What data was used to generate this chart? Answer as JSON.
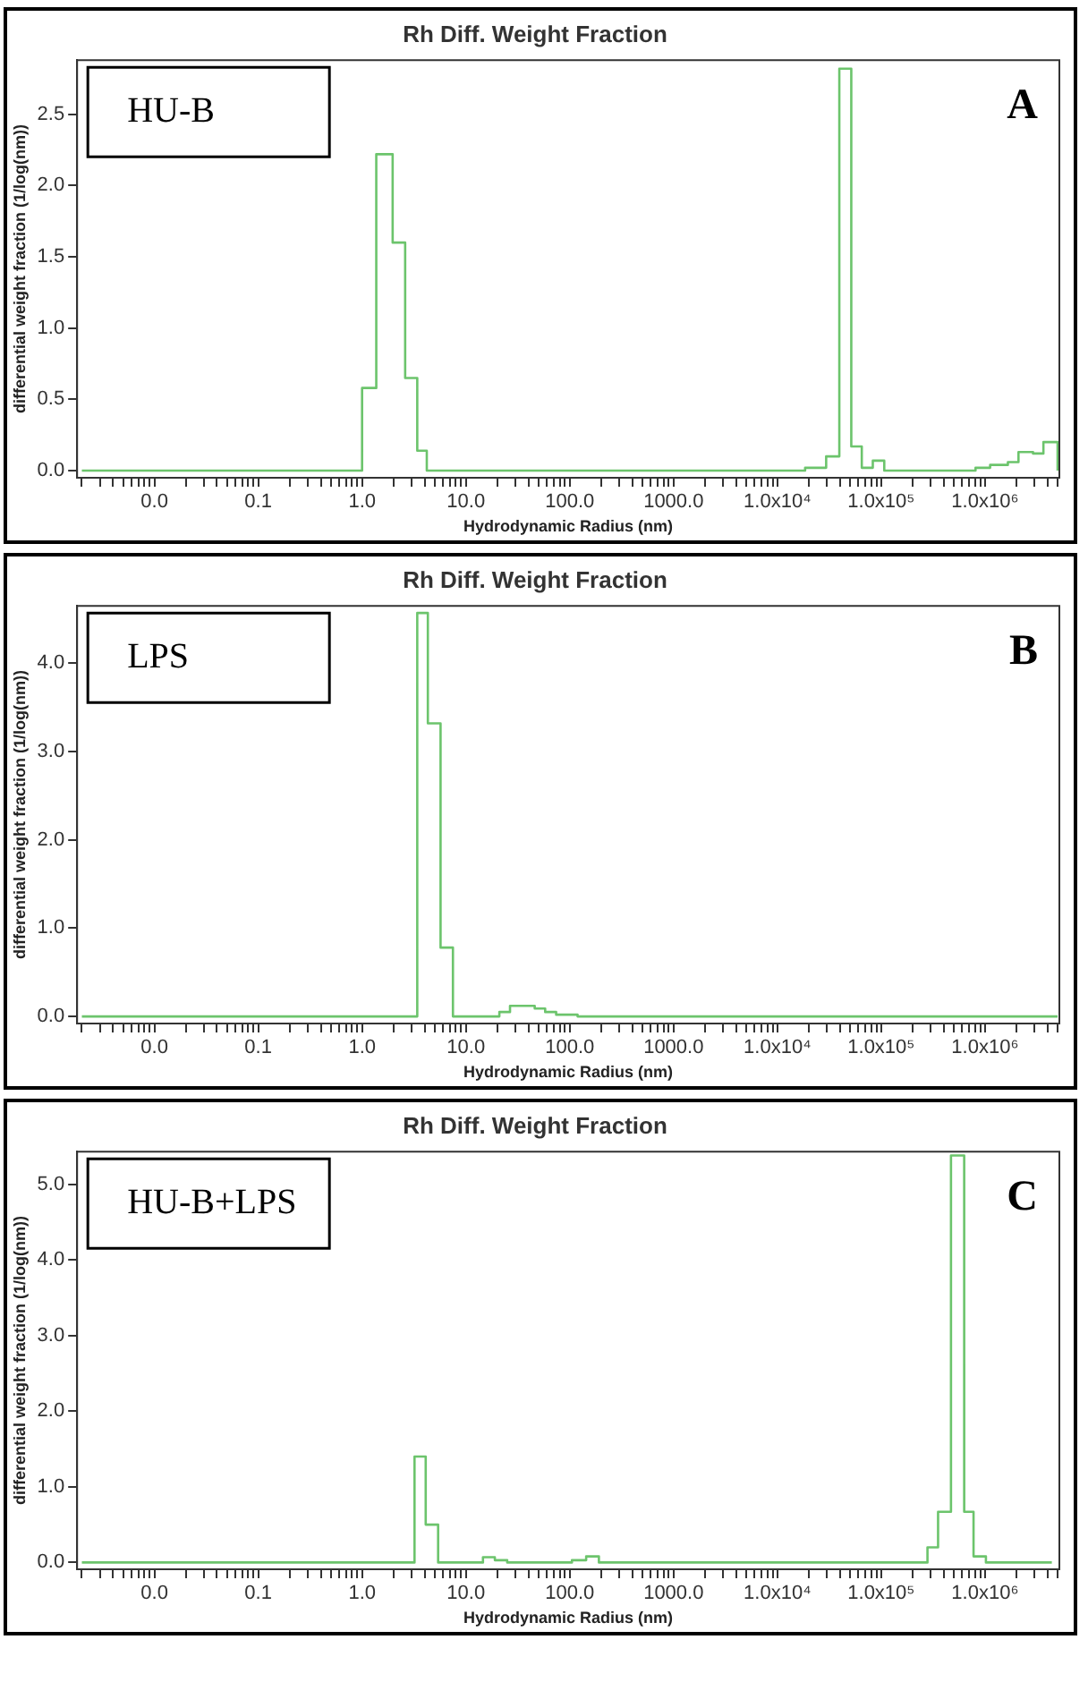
{
  "chart_data": [
    {
      "type": "step",
      "title": "Rh Diff. Weight Fraction",
      "xlabel": "Hydrodynamic Radius (nm)",
      "ylabel": "differential weight fraction (1/log(nm))",
      "log": "x",
      "color": "#6cc46c",
      "annotations": [
        "HU-B",
        "A"
      ],
      "x": [
        0.002,
        1.0,
        1.37,
        1.97,
        2.6,
        3.4,
        4.2,
        18500,
        29500,
        39500,
        51500,
        65000,
        83000,
        107000,
        810000,
        1120000,
        1660000,
        2100000,
        2900000,
        3650000,
        5000000
      ],
      "values": [
        0,
        0.58,
        2.22,
        1.6,
        0.65,
        0.14,
        0,
        0.02,
        0.1,
        2.82,
        0.17,
        0.02,
        0.07,
        0,
        0.02,
        0.04,
        0.06,
        0.13,
        0.12,
        0.2,
        0
      ],
      "xlim": [
        0.0018,
        5200000
      ],
      "ylim": [
        -0.05,
        2.88
      ],
      "yticks": [
        {
          "value": 0,
          "label": "0.0"
        },
        {
          "value": 0.5,
          "label": "0.5"
        },
        {
          "value": 1,
          "label": "1.0"
        },
        {
          "value": 1.5,
          "label": "1.5"
        },
        {
          "value": 2,
          "label": "2.0"
        },
        {
          "value": 2.5,
          "label": "2.5"
        }
      ],
      "xticks": [
        {
          "value": 0.002,
          "label": null
        },
        {
          "value": 0.003,
          "label": null
        },
        {
          "value": 0.004,
          "label": null
        },
        {
          "value": 0.005,
          "label": null
        },
        {
          "value": 0.006,
          "label": null
        },
        {
          "value": 0.007,
          "label": null
        },
        {
          "value": 0.008,
          "label": null
        },
        {
          "value": 0.009,
          "label": null
        },
        {
          "value": 0.01,
          "label": "0.0"
        },
        {
          "value": 0.02,
          "label": null
        },
        {
          "value": 0.03,
          "label": null
        },
        {
          "value": 0.04,
          "label": null
        },
        {
          "value": 0.05,
          "label": null
        },
        {
          "value": 0.06,
          "label": null
        },
        {
          "value": 0.07,
          "label": null
        },
        {
          "value": 0.08,
          "label": null
        },
        {
          "value": 0.09,
          "label": null
        },
        {
          "value": 0.1,
          "label": "0.1"
        },
        {
          "value": 0.2,
          "label": null
        },
        {
          "value": 0.3,
          "label": null
        },
        {
          "value": 0.4,
          "label": null
        },
        {
          "value": 0.5,
          "label": null
        },
        {
          "value": 0.6,
          "label": null
        },
        {
          "value": 0.7,
          "label": null
        },
        {
          "value": 0.8,
          "label": null
        },
        {
          "value": 0.9,
          "label": null
        },
        {
          "value": 1,
          "label": "1.0"
        },
        {
          "value": 2,
          "label": null
        },
        {
          "value": 3,
          "label": null
        },
        {
          "value": 4,
          "label": null
        },
        {
          "value": 5,
          "label": null
        },
        {
          "value": 6,
          "label": null
        },
        {
          "value": 7,
          "label": null
        },
        {
          "value": 8,
          "label": null
        },
        {
          "value": 9,
          "label": null
        },
        {
          "value": 10,
          "label": "10.0"
        },
        {
          "value": 20,
          "label": null
        },
        {
          "value": 30,
          "label": null
        },
        {
          "value": 40,
          "label": null
        },
        {
          "value": 50,
          "label": null
        },
        {
          "value": 60,
          "label": null
        },
        {
          "value": 70,
          "label": null
        },
        {
          "value": 80,
          "label": null
        },
        {
          "value": 90,
          "label": null
        },
        {
          "value": 100,
          "label": "100.0"
        },
        {
          "value": 200,
          "label": null
        },
        {
          "value": 300,
          "label": null
        },
        {
          "value": 400,
          "label": null
        },
        {
          "value": 500,
          "label": null
        },
        {
          "value": 600,
          "label": null
        },
        {
          "value": 700,
          "label": null
        },
        {
          "value": 800,
          "label": null
        },
        {
          "value": 900,
          "label": null
        },
        {
          "value": 1000,
          "label": "1000.0"
        },
        {
          "value": 2000,
          "label": null
        },
        {
          "value": 3000,
          "label": null
        },
        {
          "value": 4000,
          "label": null
        },
        {
          "value": 5000,
          "label": null
        },
        {
          "value": 6000,
          "label": null
        },
        {
          "value": 7000,
          "label": null
        },
        {
          "value": 8000,
          "label": null
        },
        {
          "value": 9000,
          "label": null
        },
        {
          "value": 10000,
          "label": "1.0x10⁴"
        },
        {
          "value": 20000,
          "label": null
        },
        {
          "value": 30000,
          "label": null
        },
        {
          "value": 40000,
          "label": null
        },
        {
          "value": 50000,
          "label": null
        },
        {
          "value": 60000,
          "label": null
        },
        {
          "value": 70000,
          "label": null
        },
        {
          "value": 80000,
          "label": null
        },
        {
          "value": 90000,
          "label": null
        },
        {
          "value": 100000,
          "label": "1.0x10⁵"
        },
        {
          "value": 200000,
          "label": null
        },
        {
          "value": 300000,
          "label": null
        },
        {
          "value": 400000,
          "label": null
        },
        {
          "value": 500000,
          "label": null
        },
        {
          "value": 600000,
          "label": null
        },
        {
          "value": 700000,
          "label": null
        },
        {
          "value": 800000,
          "label": null
        },
        {
          "value": 900000,
          "label": null
        },
        {
          "value": 1000000,
          "label": "1.0x10⁶"
        },
        {
          "value": 2000000,
          "label": null
        },
        {
          "value": 3000000,
          "label": null
        },
        {
          "value": 4000000,
          "label": null
        },
        {
          "value": 5000000,
          "label": null
        }
      ]
    },
    {
      "type": "step",
      "title": "Rh Diff. Weight Fraction",
      "xlabel": "Hydrodynamic Radius (nm)",
      "ylabel": "differential weight fraction (1/log(nm))",
      "log": "x",
      "color": "#6cc46c",
      "annotations": [
        "LPS",
        "B"
      ],
      "x": [
        0.002,
        3.4,
        4.3,
        5.7,
        7.5,
        21,
        26.6,
        46,
        58,
        74,
        119,
        5000000
      ],
      "values": [
        0,
        4.57,
        3.32,
        0.78,
        0,
        0.05,
        0.12,
        0.09,
        0.05,
        0.02,
        0,
        0
      ],
      "xlim": [
        0.0018,
        5200000
      ],
      "ylim": [
        -0.08,
        4.65
      ],
      "yticks": [
        {
          "value": 0,
          "label": "0.0"
        },
        {
          "value": 1,
          "label": "1.0"
        },
        {
          "value": 2,
          "label": "2.0"
        },
        {
          "value": 3,
          "label": "3.0"
        },
        {
          "value": 4,
          "label": "4.0"
        }
      ],
      "xticks": [
        {
          "value": 0.002,
          "label": null
        },
        {
          "value": 0.003,
          "label": null
        },
        {
          "value": 0.004,
          "label": null
        },
        {
          "value": 0.005,
          "label": null
        },
        {
          "value": 0.006,
          "label": null
        },
        {
          "value": 0.007,
          "label": null
        },
        {
          "value": 0.008,
          "label": null
        },
        {
          "value": 0.009,
          "label": null
        },
        {
          "value": 0.01,
          "label": "0.0"
        },
        {
          "value": 0.02,
          "label": null
        },
        {
          "value": 0.03,
          "label": null
        },
        {
          "value": 0.04,
          "label": null
        },
        {
          "value": 0.05,
          "label": null
        },
        {
          "value": 0.06,
          "label": null
        },
        {
          "value": 0.07,
          "label": null
        },
        {
          "value": 0.08,
          "label": null
        },
        {
          "value": 0.09,
          "label": null
        },
        {
          "value": 0.1,
          "label": "0.1"
        },
        {
          "value": 0.2,
          "label": null
        },
        {
          "value": 0.3,
          "label": null
        },
        {
          "value": 0.4,
          "label": null
        },
        {
          "value": 0.5,
          "label": null
        },
        {
          "value": 0.6,
          "label": null
        },
        {
          "value": 0.7,
          "label": null
        },
        {
          "value": 0.8,
          "label": null
        },
        {
          "value": 0.9,
          "label": null
        },
        {
          "value": 1,
          "label": "1.0"
        },
        {
          "value": 2,
          "label": null
        },
        {
          "value": 3,
          "label": null
        },
        {
          "value": 4,
          "label": null
        },
        {
          "value": 5,
          "label": null
        },
        {
          "value": 6,
          "label": null
        },
        {
          "value": 7,
          "label": null
        },
        {
          "value": 8,
          "label": null
        },
        {
          "value": 9,
          "label": null
        },
        {
          "value": 10,
          "label": "10.0"
        },
        {
          "value": 20,
          "label": null
        },
        {
          "value": 30,
          "label": null
        },
        {
          "value": 40,
          "label": null
        },
        {
          "value": 50,
          "label": null
        },
        {
          "value": 60,
          "label": null
        },
        {
          "value": 70,
          "label": null
        },
        {
          "value": 80,
          "label": null
        },
        {
          "value": 90,
          "label": null
        },
        {
          "value": 100,
          "label": "100.0"
        },
        {
          "value": 200,
          "label": null
        },
        {
          "value": 300,
          "label": null
        },
        {
          "value": 400,
          "label": null
        },
        {
          "value": 500,
          "label": null
        },
        {
          "value": 600,
          "label": null
        },
        {
          "value": 700,
          "label": null
        },
        {
          "value": 800,
          "label": null
        },
        {
          "value": 900,
          "label": null
        },
        {
          "value": 1000,
          "label": "1000.0"
        },
        {
          "value": 2000,
          "label": null
        },
        {
          "value": 3000,
          "label": null
        },
        {
          "value": 4000,
          "label": null
        },
        {
          "value": 5000,
          "label": null
        },
        {
          "value": 6000,
          "label": null
        },
        {
          "value": 7000,
          "label": null
        },
        {
          "value": 8000,
          "label": null
        },
        {
          "value": 9000,
          "label": null
        },
        {
          "value": 10000,
          "label": "1.0x10⁴"
        },
        {
          "value": 20000,
          "label": null
        },
        {
          "value": 30000,
          "label": null
        },
        {
          "value": 40000,
          "label": null
        },
        {
          "value": 50000,
          "label": null
        },
        {
          "value": 60000,
          "label": null
        },
        {
          "value": 70000,
          "label": null
        },
        {
          "value": 80000,
          "label": null
        },
        {
          "value": 90000,
          "label": null
        },
        {
          "value": 100000,
          "label": "1.0x10⁵"
        },
        {
          "value": 200000,
          "label": null
        },
        {
          "value": 300000,
          "label": null
        },
        {
          "value": 400000,
          "label": null
        },
        {
          "value": 500000,
          "label": null
        },
        {
          "value": 600000,
          "label": null
        },
        {
          "value": 700000,
          "label": null
        },
        {
          "value": 800000,
          "label": null
        },
        {
          "value": 900000,
          "label": null
        },
        {
          "value": 1000000,
          "label": "1.0x10⁶"
        },
        {
          "value": 2000000,
          "label": null
        },
        {
          "value": 3000000,
          "label": null
        },
        {
          "value": 4000000,
          "label": null
        },
        {
          "value": 5000000,
          "label": null
        }
      ]
    },
    {
      "type": "step",
      "title": "Rh Diff. Weight Fraction",
      "xlabel": "Hydrodynamic Radius (nm)",
      "ylabel": "differential weight fraction (1/log(nm))",
      "log": "x",
      "color": "#6cc46c",
      "annotations": [
        "HU-B+LPS",
        "C"
      ],
      "x": [
        0.002,
        3.2,
        4.1,
        5.4,
        14.6,
        19,
        25,
        105,
        144,
        191,
        279000,
        353000,
        470000,
        630000,
        775000,
        1020000,
        4400000
      ],
      "values": [
        0,
        1.4,
        0.5,
        0,
        0.07,
        0.03,
        0,
        0.03,
        0.08,
        0,
        0.2,
        0.67,
        5.38,
        0.67,
        0.08,
        0,
        0
      ],
      "xlim": [
        0.0018,
        5200000
      ],
      "ylim": [
        -0.09,
        5.43
      ],
      "yticks": [
        {
          "value": 0,
          "label": "0.0"
        },
        {
          "value": 1,
          "label": "1.0"
        },
        {
          "value": 2,
          "label": "2.0"
        },
        {
          "value": 3,
          "label": "3.0"
        },
        {
          "value": 4,
          "label": "4.0"
        },
        {
          "value": 5,
          "label": "5.0"
        }
      ],
      "xticks": [
        {
          "value": 0.002,
          "label": null
        },
        {
          "value": 0.003,
          "label": null
        },
        {
          "value": 0.004,
          "label": null
        },
        {
          "value": 0.005,
          "label": null
        },
        {
          "value": 0.006,
          "label": null
        },
        {
          "value": 0.007,
          "label": null
        },
        {
          "value": 0.008,
          "label": null
        },
        {
          "value": 0.009,
          "label": null
        },
        {
          "value": 0.01,
          "label": "0.0"
        },
        {
          "value": 0.02,
          "label": null
        },
        {
          "value": 0.03,
          "label": null
        },
        {
          "value": 0.04,
          "label": null
        },
        {
          "value": 0.05,
          "label": null
        },
        {
          "value": 0.06,
          "label": null
        },
        {
          "value": 0.07,
          "label": null
        },
        {
          "value": 0.08,
          "label": null
        },
        {
          "value": 0.09,
          "label": null
        },
        {
          "value": 0.1,
          "label": "0.1"
        },
        {
          "value": 0.2,
          "label": null
        },
        {
          "value": 0.3,
          "label": null
        },
        {
          "value": 0.4,
          "label": null
        },
        {
          "value": 0.5,
          "label": null
        },
        {
          "value": 0.6,
          "label": null
        },
        {
          "value": 0.7,
          "label": null
        },
        {
          "value": 0.8,
          "label": null
        },
        {
          "value": 0.9,
          "label": null
        },
        {
          "value": 1,
          "label": "1.0"
        },
        {
          "value": 2,
          "label": null
        },
        {
          "value": 3,
          "label": null
        },
        {
          "value": 4,
          "label": null
        },
        {
          "value": 5,
          "label": null
        },
        {
          "value": 6,
          "label": null
        },
        {
          "value": 7,
          "label": null
        },
        {
          "value": 8,
          "label": null
        },
        {
          "value": 9,
          "label": null
        },
        {
          "value": 10,
          "label": "10.0"
        },
        {
          "value": 20,
          "label": null
        },
        {
          "value": 30,
          "label": null
        },
        {
          "value": 40,
          "label": null
        },
        {
          "value": 50,
          "label": null
        },
        {
          "value": 60,
          "label": null
        },
        {
          "value": 70,
          "label": null
        },
        {
          "value": 80,
          "label": null
        },
        {
          "value": 90,
          "label": null
        },
        {
          "value": 100,
          "label": "100.0"
        },
        {
          "value": 200,
          "label": null
        },
        {
          "value": 300,
          "label": null
        },
        {
          "value": 400,
          "label": null
        },
        {
          "value": 500,
          "label": null
        },
        {
          "value": 600,
          "label": null
        },
        {
          "value": 700,
          "label": null
        },
        {
          "value": 800,
          "label": null
        },
        {
          "value": 900,
          "label": null
        },
        {
          "value": 1000,
          "label": "1000.0"
        },
        {
          "value": 2000,
          "label": null
        },
        {
          "value": 3000,
          "label": null
        },
        {
          "value": 4000,
          "label": null
        },
        {
          "value": 5000,
          "label": null
        },
        {
          "value": 6000,
          "label": null
        },
        {
          "value": 7000,
          "label": null
        },
        {
          "value": 8000,
          "label": null
        },
        {
          "value": 9000,
          "label": null
        },
        {
          "value": 10000,
          "label": "1.0x10⁴"
        },
        {
          "value": 20000,
          "label": null
        },
        {
          "value": 30000,
          "label": null
        },
        {
          "value": 40000,
          "label": null
        },
        {
          "value": 50000,
          "label": null
        },
        {
          "value": 60000,
          "label": null
        },
        {
          "value": 70000,
          "label": null
        },
        {
          "value": 80000,
          "label": null
        },
        {
          "value": 90000,
          "label": null
        },
        {
          "value": 100000,
          "label": "1.0x10⁵"
        },
        {
          "value": 200000,
          "label": null
        },
        {
          "value": 300000,
          "label": null
        },
        {
          "value": 400000,
          "label": null
        },
        {
          "value": 500000,
          "label": null
        },
        {
          "value": 600000,
          "label": null
        },
        {
          "value": 700000,
          "label": null
        },
        {
          "value": 800000,
          "label": null
        },
        {
          "value": 900000,
          "label": null
        },
        {
          "value": 1000000,
          "label": "1.0x10⁶"
        },
        {
          "value": 2000000,
          "label": null
        },
        {
          "value": 3000000,
          "label": null
        },
        {
          "value": 4000000,
          "label": null
        },
        {
          "value": 5000000,
          "label": null
        }
      ]
    }
  ]
}
